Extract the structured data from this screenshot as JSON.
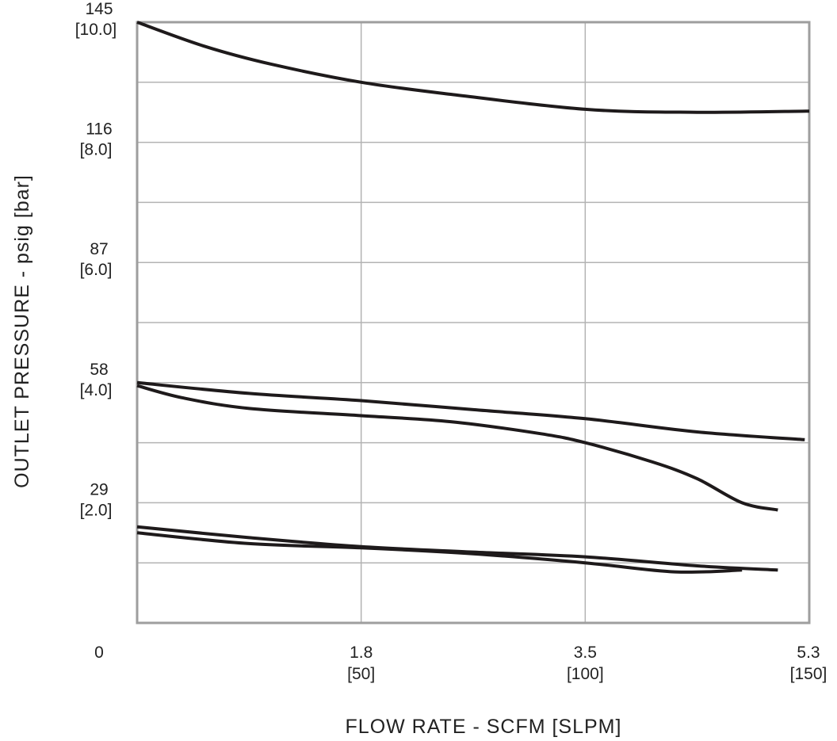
{
  "chart_data": {
    "type": "line",
    "xlabel": "FLOW RATE - SCFM [SLPM]",
    "ylabel": "OUTLET PRESSURE - psig [bar]",
    "xlim": [
      0,
      150
    ],
    "ylim": [
      0,
      10.0
    ],
    "grid": true,
    "x_ticks": [
      {
        "value": 0,
        "label": "0",
        "sublabel": ""
      },
      {
        "value": 50,
        "label": "1.8",
        "sublabel": "[50]"
      },
      {
        "value": 100,
        "label": "3.5",
        "sublabel": "[100]"
      },
      {
        "value": 150,
        "label": "5.3",
        "sublabel": "[150]"
      }
    ],
    "y_ticks": [
      {
        "value": 2.0,
        "label": "29",
        "sublabel": "[2.0]"
      },
      {
        "value": 4.0,
        "label": "58",
        "sublabel": "[4.0]"
      },
      {
        "value": 6.0,
        "label": "87",
        "sublabel": "[6.0]"
      },
      {
        "value": 8.0,
        "label": "116",
        "sublabel": "[8.0]"
      },
      {
        "value": 10.0,
        "label": "145",
        "sublabel": "[10.0]"
      }
    ],
    "x_grid": [
      50,
      100
    ],
    "y_grid": [
      1,
      2,
      3,
      4,
      5,
      6,
      7,
      8,
      9
    ],
    "series": [
      {
        "values": [
          [
            0,
            10.0
          ],
          [
            15,
            9.6
          ],
          [
            30,
            9.3
          ],
          [
            50,
            9.0
          ],
          [
            70,
            8.8
          ],
          [
            100,
            8.55
          ],
          [
            125,
            8.5
          ],
          [
            150,
            8.52
          ]
        ]
      },
      {
        "values": [
          [
            0,
            4.0
          ],
          [
            25,
            3.82
          ],
          [
            50,
            3.7
          ],
          [
            75,
            3.55
          ],
          [
            100,
            3.4
          ],
          [
            125,
            3.18
          ],
          [
            149,
            3.05
          ]
        ]
      },
      {
        "values": [
          [
            0,
            3.95
          ],
          [
            10,
            3.75
          ],
          [
            25,
            3.57
          ],
          [
            50,
            3.45
          ],
          [
            70,
            3.35
          ],
          [
            90,
            3.15
          ],
          [
            100,
            3.0
          ],
          [
            115,
            2.68
          ],
          [
            125,
            2.4
          ],
          [
            135,
            2.0
          ],
          [
            143,
            1.88
          ]
        ]
      },
      {
        "values": [
          [
            0,
            1.5
          ],
          [
            25,
            1.32
          ],
          [
            50,
            1.25
          ],
          [
            75,
            1.15
          ],
          [
            100,
            1.0
          ],
          [
            120,
            0.85
          ],
          [
            135,
            0.88
          ]
        ]
      },
      {
        "values": [
          [
            0,
            1.6
          ],
          [
            25,
            1.42
          ],
          [
            50,
            1.27
          ],
          [
            75,
            1.18
          ],
          [
            100,
            1.1
          ],
          [
            125,
            0.95
          ],
          [
            143,
            0.88
          ]
        ]
      }
    ]
  }
}
